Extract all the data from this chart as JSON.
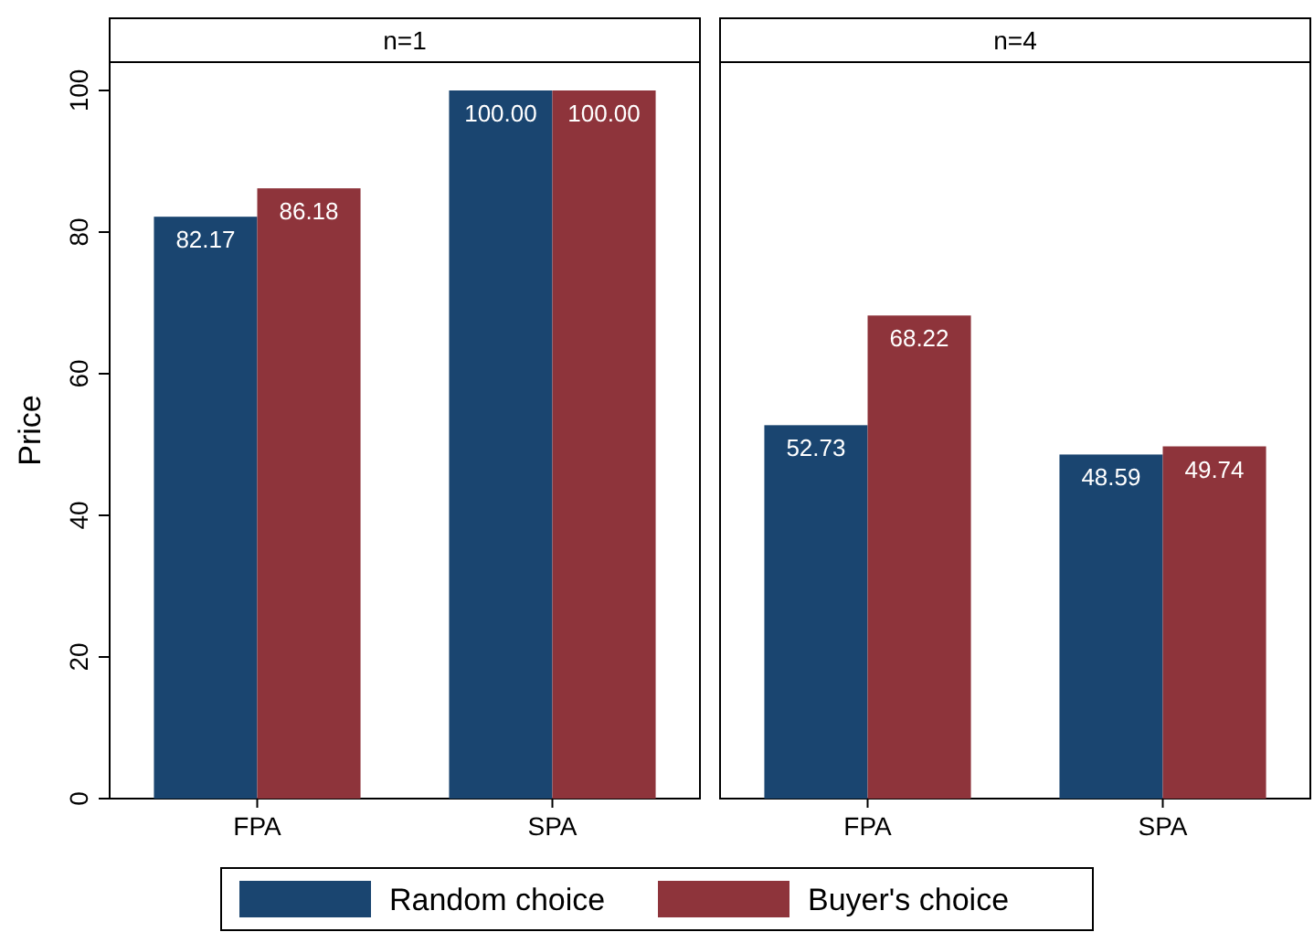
{
  "chart_data": [
    {
      "type": "bar",
      "title": "n=1",
      "ylabel": "Price",
      "categories": [
        "FPA",
        "SPA"
      ],
      "ylim": [
        0,
        104
      ],
      "yticks": [
        0,
        20,
        40,
        60,
        80,
        100
      ],
      "legend": "bottom",
      "series": [
        {
          "name": "Random choice",
          "color": "#1a4570",
          "values": [
            82.17,
            100
          ],
          "value_labels": [
            "82.17",
            "100.00"
          ]
        },
        {
          "name": "Buyer's choice",
          "color": "#8e343b",
          "values": [
            86.18,
            100
          ],
          "value_labels": [
            "86.18",
            "100.00"
          ]
        }
      ]
    },
    {
      "type": "bar",
      "title": "n=4",
      "categories": [
        "FPA",
        "SPA"
      ],
      "ylim": [
        0,
        104
      ],
      "tick_labels": "x",
      "series": [
        {
          "name": "Random choice",
          "color": "#1a4570",
          "values": [
            52.73,
            48.59
          ],
          "value_labels": [
            "52.73",
            "48.59"
          ]
        },
        {
          "name": "Buyer's choice",
          "color": "#8e343b",
          "values": [
            68.22,
            49.74
          ],
          "value_labels": [
            "68.22",
            "49.74"
          ]
        }
      ]
    }
  ]
}
